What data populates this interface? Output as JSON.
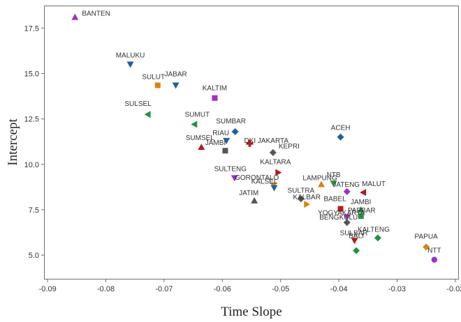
{
  "chart_data": {
    "type": "scatter",
    "xlabel": "Time Slope",
    "ylabel": "Intercept",
    "xlim": [
      -0.0905,
      -0.0195
    ],
    "ylim": [
      3.7,
      18.7
    ],
    "xticks": [
      "-0.09",
      "-0.08",
      "-0.07",
      "-0.06",
      "-0.05",
      "-0.04",
      "-0.03",
      "-0.02"
    ],
    "xtick_values": [
      -0.09,
      -0.08,
      -0.07,
      -0.06,
      -0.05,
      -0.04,
      -0.03,
      -0.02
    ],
    "yticks": [
      "5.0",
      "7.5",
      "10.0",
      "12.5",
      "15.0",
      "17.5"
    ],
    "ytick_values": [
      5.0,
      7.5,
      10.0,
      12.5,
      15.0,
      17.5
    ],
    "grid": false,
    "legend": "none",
    "points": [
      {
        "label": "BANTEN",
        "x": -0.0853,
        "y": 18.1,
        "color": "#9b30c8",
        "marker": "triangle-up"
      },
      {
        "label": "MALUKU",
        "x": -0.0758,
        "y": 15.5,
        "color": "#1f5fa8",
        "marker": "triangle-down"
      },
      {
        "label": "SULUT",
        "x": -0.0711,
        "y": 14.35,
        "color": "#d4860b",
        "marker": "square"
      },
      {
        "label": "JABAR",
        "x": -0.068,
        "y": 14.35,
        "color": "#1f5fa8",
        "marker": "triangle-down"
      },
      {
        "label": "KALTIM",
        "x": -0.0613,
        "y": 13.65,
        "color": "#9b30c8",
        "marker": "square"
      },
      {
        "label": "SULSEL",
        "x": -0.0728,
        "y": 12.75,
        "color": "#1e9440",
        "marker": "triangle-left"
      },
      {
        "label": "SUMUT",
        "x": -0.0648,
        "y": 12.2,
        "color": "#1e9440",
        "marker": "triangle-left"
      },
      {
        "label": "SUMBAR",
        "x": -0.0578,
        "y": 11.8,
        "color": "#1f5fa8",
        "marker": "diamond"
      },
      {
        "label": "RIAU",
        "x": -0.0593,
        "y": 11.3,
        "color": "#1f5fa8",
        "marker": "triangle-down"
      },
      {
        "label": "DKI JAKARTA",
        "x": -0.0553,
        "y": 11.15,
        "color": "#b51a1a",
        "marker": "plus"
      },
      {
        "label": "SUMSEL",
        "x": -0.0636,
        "y": 10.95,
        "color": "#b51a1a",
        "marker": "triangle-up"
      },
      {
        "label": "JAMBI",
        "x": -0.0595,
        "y": 10.75,
        "color": "#555555",
        "marker": "square"
      },
      {
        "label": "KEPRI",
        "x": -0.0513,
        "y": 10.65,
        "color": "#555555",
        "marker": "diamond"
      },
      {
        "label": "ACEH",
        "x": -0.0397,
        "y": 11.5,
        "color": "#1f5fa8",
        "marker": "diamond"
      },
      {
        "label": "KALTARA",
        "x": -0.0504,
        "y": 9.55,
        "color": "#b51a1a",
        "marker": "triangle-right"
      },
      {
        "label": "SULTENG",
        "x": -0.0579,
        "y": 9.25,
        "color": "#9b30c8",
        "marker": "triangle-down"
      },
      {
        "label": "GORONTALO",
        "x": -0.0512,
        "y": 8.85,
        "color": "#d4860b",
        "marker": "triangle-down"
      },
      {
        "label": "KALSEL",
        "x": -0.0511,
        "y": 8.7,
        "color": "#1f5fa8",
        "marker": "triangle-down"
      },
      {
        "label": "LAMPUNG",
        "x": -0.043,
        "y": 8.9,
        "color": "#d4860b",
        "marker": "triangle-up"
      },
      {
        "label": "NTB",
        "x": -0.0409,
        "y": 8.95,
        "color": "#1e9440",
        "marker": "triangle-down"
      },
      {
        "label": "JATENG",
        "x": -0.0386,
        "y": 8.5,
        "color": "#9b30c8",
        "marker": "diamond"
      },
      {
        "label": "MALUT",
        "x": -0.0358,
        "y": 8.45,
        "color": "#b51a1a",
        "marker": "triangle-left"
      },
      {
        "label": "JATIM",
        "x": -0.0545,
        "y": 8.0,
        "color": "#555555",
        "marker": "triangle-up"
      },
      {
        "label": "SULTRA",
        "x": -0.0465,
        "y": 8.1,
        "color": "#555555",
        "marker": "diamond"
      },
      {
        "label": "KALBAR",
        "x": -0.0455,
        "y": 7.8,
        "color": "#d4860b",
        "marker": "triangle-right"
      },
      {
        "label": "BABEL",
        "x": -0.0397,
        "y": 7.55,
        "color": "#b51a1a",
        "marker": "square"
      },
      {
        "label": "JAMBI",
        "x": -0.0362,
        "y": 7.5,
        "color": "#1e9440",
        "marker": "triangle-up"
      },
      {
        "label": "YOGYAKARTA",
        "x": -0.0386,
        "y": 7.1,
        "color": "#9b30c8",
        "marker": "triangle-down"
      },
      {
        "label": "BENGKULU",
        "x": -0.0386,
        "y": 6.8,
        "color": "#555555",
        "marker": "diamond"
      },
      {
        "label": "PAPBAR",
        "x": -0.0362,
        "y": 7.15,
        "color": "#1e9440",
        "marker": "square"
      },
      {
        "label": "SULBAR",
        "x": -0.0373,
        "y": 5.8,
        "color": "#b51a1a",
        "marker": "triangle-down"
      },
      {
        "label": "KALTENG",
        "x": -0.0333,
        "y": 5.95,
        "color": "#1e9440",
        "marker": "diamond"
      },
      {
        "label": "BALI",
        "x": -0.037,
        "y": 5.25,
        "color": "#1e9440",
        "marker": "diamond"
      },
      {
        "label": "PAPUA",
        "x": -0.025,
        "y": 5.45,
        "color": "#d4860b",
        "marker": "diamond"
      },
      {
        "label": "NTT",
        "x": -0.0236,
        "y": 4.75,
        "color": "#9b30c8",
        "marker": "circle"
      }
    ]
  }
}
